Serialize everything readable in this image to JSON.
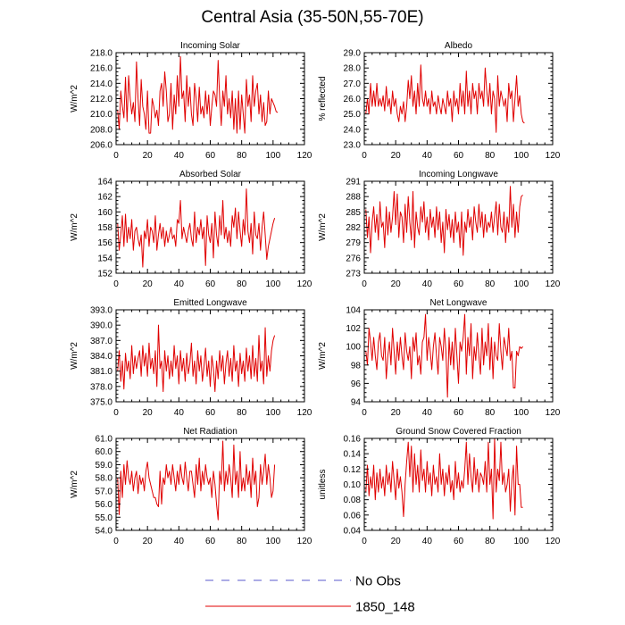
{
  "title": "Central Asia (35-50N,55-70E)",
  "legend": [
    {
      "label": "No Obs",
      "color": "#5a5acc",
      "dash": true
    },
    {
      "label": "1850_148",
      "color": "#e00000",
      "dash": false
    }
  ],
  "chart_data": [
    {
      "type": "line",
      "title": "Incoming Solar",
      "ylabel": "W/m^2",
      "xlim": [
        0,
        120
      ],
      "xticks": [
        0,
        20,
        40,
        60,
        80,
        100,
        120
      ],
      "ylim": [
        206,
        218
      ],
      "yticks": [
        "206.0",
        "208.0",
        "210.0",
        "212.0",
        "214.0",
        "216.0",
        "218.0"
      ],
      "x_start": 1,
      "series": [
        {
          "color": "#e00000",
          "values": [
            210.5,
            208.0,
            213.0,
            211.0,
            209.5,
            214.8,
            209.0,
            215.0,
            212.0,
            210.0,
            211.5,
            209.0,
            216.8,
            212.0,
            208.5,
            214.5,
            211.0,
            210.0,
            208.0,
            213.0,
            207.5,
            207.5,
            212.0,
            211.0,
            209.5,
            210.5,
            208.5,
            213.0,
            214.0,
            211.0,
            215.5,
            213.0,
            209.0,
            210.0,
            214.0,
            208.0,
            212.5,
            210.0,
            215.0,
            211.0,
            217.5,
            212.0,
            213.0,
            209.0,
            215.0,
            211.0,
            213.5,
            210.0,
            208.5,
            214.0,
            212.0,
            209.0,
            213.5,
            210.0,
            211.0,
            209.5,
            213.0,
            210.0,
            212.5,
            208.5,
            211.0,
            213.0,
            212.5,
            211.0,
            217.0,
            212.0,
            208.5,
            213.0,
            211.0,
            215.0,
            210.0,
            212.0,
            209.5,
            213.0,
            208.0,
            212.0,
            207.5,
            213.0,
            208.0,
            212.5,
            210.0,
            207.5,
            214.5,
            211.0,
            212.5,
            209.0,
            215.0,
            211.0,
            213.0,
            214.0,
            210.0,
            212.5,
            209.0,
            211.5,
            208.5,
            209.0,
            213.0,
            210.0,
            212.0,
            211.5,
            211.0,
            210.3,
            210.2
          ]
        }
      ]
    },
    {
      "type": "line",
      "title": "Albedo",
      "ylabel": "% reflected",
      "xlim": [
        0,
        120
      ],
      "xticks": [
        0,
        20,
        40,
        60,
        80,
        100,
        120
      ],
      "ylim": [
        23,
        29
      ],
      "yticks": [
        "23.0",
        "24.0",
        "25.0",
        "26.0",
        "27.0",
        "28.0",
        "29.0"
      ],
      "x_start": 1,
      "series": [
        {
          "color": "#e00000",
          "values": [
            25.0,
            26.0,
            25.0,
            27.0,
            25.5,
            26.5,
            25.5,
            27.0,
            25.5,
            26.0,
            25.5,
            26.2,
            25.2,
            26.8,
            25.5,
            26.0,
            25.0,
            26.5,
            25.5,
            26.0,
            25.0,
            24.5,
            25.5,
            25.0,
            25.8,
            24.5,
            25.5,
            27.2,
            26.0,
            27.5,
            25.5,
            26.5,
            25.0,
            27.0,
            25.5,
            28.2,
            26.0,
            25.5,
            26.5,
            25.5,
            26.0,
            25.0,
            26.5,
            25.5,
            25.8,
            25.0,
            26.2,
            25.5,
            25.0,
            26.0,
            25.5,
            25.0,
            26.5,
            25.5,
            26.0,
            24.5,
            26.5,
            25.5,
            26.0,
            25.0,
            27.0,
            25.5,
            26.5,
            25.0,
            27.8,
            25.5,
            26.5,
            25.0,
            27.0,
            26.0,
            26.5,
            25.0,
            27.0,
            26.0,
            26.5,
            25.5,
            28.0,
            26.5,
            25.5,
            27.0,
            25.0,
            26.5,
            26.0,
            23.8,
            27.5,
            25.5,
            26.5,
            26.0,
            25.5,
            26.0,
            24.5,
            27.0,
            26.0,
            26.5,
            24.5,
            26.0,
            27.5,
            25.5,
            26.2,
            25.0,
            24.5,
            24.4
          ]
        }
      ]
    },
    {
      "type": "line",
      "title": "Absorbed Solar",
      "ylabel": "W/m^2",
      "xlim": [
        0,
        120
      ],
      "xticks": [
        0,
        20,
        40,
        60,
        80,
        100,
        120
      ],
      "ylim": [
        152,
        164
      ],
      "yticks": [
        "152",
        "154",
        "156",
        "158",
        "160",
        "162",
        "164"
      ],
      "x_start": 1,
      "series": [
        {
          "color": "#e00000",
          "values": [
            158.5,
            155.0,
            157.0,
            159.5,
            155.5,
            159.7,
            156.0,
            158.0,
            156.5,
            159.0,
            155.0,
            157.5,
            158.0,
            156.5,
            155.5,
            157.0,
            152.8,
            157.5,
            156.5,
            159.0,
            155.5,
            158.0,
            157.5,
            156.0,
            159.5,
            155.0,
            157.0,
            158.5,
            156.5,
            158.0,
            155.5,
            157.5,
            156.0,
            157.0,
            158.0,
            156.5,
            157.0,
            155.5,
            159.0,
            158.5,
            161.5,
            156.5,
            158.0,
            157.0,
            156.0,
            157.5,
            158.5,
            156.5,
            155.5,
            160.0,
            156.0,
            158.0,
            157.0,
            159.0,
            156.5,
            158.0,
            153.0,
            159.5,
            157.0,
            156.0,
            158.5,
            154.0,
            160.0,
            157.0,
            155.5,
            159.5,
            157.0,
            161.5,
            156.5,
            158.0,
            156.0,
            157.5,
            155.5,
            159.5,
            158.0,
            160.5,
            156.5,
            160.0,
            157.5,
            155.5,
            159.0,
            157.0,
            163.0,
            157.5,
            156.0,
            158.5,
            154.5,
            160.0,
            157.0,
            156.5,
            158.5,
            155.0,
            158.0,
            160.0,
            157.0,
            153.8,
            155.5,
            156.5,
            157.5,
            158.5,
            159.2
          ]
        }
      ]
    },
    {
      "type": "line",
      "title": "Incoming Longwave",
      "ylabel": "W/m^2",
      "xlim": [
        0,
        120
      ],
      "xticks": [
        0,
        20,
        40,
        60,
        80,
        100,
        120
      ],
      "ylim": [
        273,
        291
      ],
      "yticks": [
        "273",
        "276",
        "279",
        "282",
        "285",
        "288",
        "291"
      ],
      "x_start": 1,
      "series": [
        {
          "color": "#e00000",
          "values": [
            285.5,
            280.0,
            284.0,
            277.0,
            283.0,
            286.0,
            281.0,
            284.5,
            279.5,
            287.0,
            282.0,
            283.0,
            278.0,
            286.0,
            280.5,
            285.0,
            281.0,
            284.0,
            289.0,
            282.5,
            288.5,
            280.0,
            285.0,
            284.0,
            279.0,
            286.5,
            281.0,
            288.0,
            283.0,
            279.5,
            289.0,
            278.0,
            285.0,
            282.0,
            280.5,
            286.0,
            283.0,
            287.0,
            281.0,
            284.0,
            279.5,
            285.5,
            282.0,
            284.0,
            280.0,
            286.0,
            281.5,
            285.0,
            279.0,
            283.0,
            277.0,
            285.5,
            281.5,
            284.5,
            280.0,
            283.5,
            279.0,
            285.0,
            281.0,
            283.0,
            278.0,
            285.0,
            276.5,
            283.0,
            281.0,
            285.5,
            282.0,
            284.0,
            279.5,
            286.0,
            283.0,
            281.0,
            286.5,
            282.0,
            285.0,
            280.0,
            284.5,
            281.0,
            283.0,
            282.0,
            285.0,
            281.0,
            284.0,
            287.0,
            280.5,
            286.5,
            282.0,
            281.0,
            285.0,
            279.0,
            284.0,
            281.0,
            290.0,
            282.0,
            286.5,
            280.0,
            285.0,
            281.0,
            286.0,
            288.0,
            288.3
          ]
        }
      ]
    },
    {
      "type": "line",
      "title": "Emitted Longwave",
      "ylabel": "W/m^2",
      "xlim": [
        0,
        120
      ],
      "xticks": [
        0,
        20,
        40,
        60,
        80,
        100,
        120
      ],
      "ylim": [
        375,
        393
      ],
      "yticks": [
        "375.0",
        "378.0",
        "381.0",
        "384.0",
        "387.0",
        "390.0",
        "393.0"
      ],
      "x_start": 1,
      "series": [
        {
          "color": "#e00000",
          "values": [
            381.0,
            385.0,
            379.0,
            383.0,
            377.5,
            384.5,
            381.0,
            383.0,
            379.5,
            386.0,
            380.5,
            384.0,
            381.5,
            383.5,
            385.0,
            380.0,
            386.0,
            382.0,
            384.5,
            380.0,
            386.5,
            381.5,
            383.5,
            380.5,
            385.0,
            378.0,
            390.0,
            381.5,
            383.0,
            377.0,
            385.0,
            381.0,
            384.0,
            379.5,
            383.0,
            380.0,
            386.0,
            381.5,
            384.0,
            378.5,
            385.0,
            381.0,
            383.5,
            379.0,
            384.5,
            380.5,
            382.5,
            386.5,
            380.0,
            383.0,
            378.5,
            385.0,
            381.0,
            384.0,
            379.0,
            382.0,
            385.5,
            380.0,
            383.0,
            378.0,
            384.0,
            381.5,
            377.0,
            383.0,
            379.5,
            385.0,
            381.0,
            384.0,
            378.5,
            382.5,
            385.0,
            380.0,
            383.5,
            379.0,
            386.0,
            381.0,
            383.0,
            378.0,
            384.5,
            380.5,
            383.0,
            379.0,
            385.5,
            381.0,
            384.0,
            379.5,
            386.0,
            380.0,
            383.5,
            379.0,
            388.0,
            381.0,
            383.0,
            378.5,
            389.5,
            380.0,
            384.0,
            381.0,
            385.0,
            387.0,
            388.0
          ]
        }
      ]
    },
    {
      "type": "line",
      "title": "Net Longwave",
      "ylabel": "W/m^2",
      "xlim": [
        0,
        120
      ],
      "xticks": [
        0,
        20,
        40,
        60,
        80,
        100,
        120
      ],
      "ylim": [
        94,
        104
      ],
      "yticks": [
        "94",
        "96",
        "98",
        "100",
        "102",
        "104"
      ],
      "x_start": 1,
      "series": [
        {
          "color": "#e00000",
          "values": [
            99.5,
            98.0,
            102.0,
            100.5,
            98.5,
            101.0,
            99.0,
            97.5,
            100.5,
            101.5,
            99.0,
            98.5,
            101.0,
            96.5,
            99.0,
            100.5,
            98.0,
            102.0,
            99.5,
            97.0,
            100.5,
            98.5,
            101.0,
            99.0,
            97.5,
            101.5,
            99.5,
            98.5,
            100.0,
            96.5,
            101.0,
            99.5,
            101.5,
            98.0,
            99.0,
            97.0,
            100.5,
            101.0,
            103.5,
            98.5,
            101.0,
            99.5,
            97.5,
            100.0,
            101.5,
            99.0,
            97.0,
            101.0,
            100.0,
            98.5,
            102.0,
            99.5,
            94.5,
            101.0,
            98.0,
            100.5,
            97.5,
            102.0,
            99.0,
            96.0,
            100.5,
            99.5,
            101.0,
            103.5,
            97.0,
            101.0,
            99.0,
            102.5,
            96.5,
            100.0,
            98.5,
            101.5,
            99.0,
            97.0,
            102.0,
            98.0,
            100.5,
            99.0,
            102.5,
            97.5,
            101.0,
            96.5,
            100.5,
            99.0,
            98.5,
            102.5,
            99.5,
            97.5,
            101.0,
            100.0,
            99.0,
            102.0,
            98.5,
            99.5,
            95.5,
            95.5,
            99.5,
            99.0,
            100.0,
            99.8,
            100.0
          ]
        }
      ]
    },
    {
      "type": "line",
      "title": "Net Radiation",
      "ylabel": "W/m^2",
      "xlim": [
        0,
        120
      ],
      "xticks": [
        0,
        20,
        40,
        60,
        80,
        100,
        120
      ],
      "ylim": [
        54,
        61
      ],
      "yticks": [
        "54.0",
        "55.0",
        "56.0",
        "57.0",
        "58.0",
        "59.0",
        "60.0",
        "61.0"
      ],
      "x_start": 1,
      "series": [
        {
          "color": "#e00000",
          "values": [
            58.0,
            55.2,
            58.5,
            56.5,
            59.0,
            57.5,
            59.3,
            58.0,
            57.5,
            58.5,
            57.0,
            58.0,
            58.5,
            56.8,
            58.2,
            57.5,
            58.0,
            57.0,
            58.5,
            59.2,
            58.0,
            57.5,
            57.0,
            56.5,
            56.5,
            56.0,
            55.8,
            58.5,
            56.0,
            58.0,
            57.5,
            59.0,
            58.0,
            58.5,
            57.5,
            59.0,
            58.0,
            57.0,
            58.5,
            57.5,
            59.0,
            58.0,
            57.5,
            59.2,
            58.0,
            57.0,
            58.5,
            58.5,
            57.5,
            56.5,
            59.0,
            57.5,
            59.5,
            57.0,
            58.5,
            57.5,
            59.0,
            58.0,
            57.5,
            58.0,
            56.5,
            58.5,
            57.5,
            56.0,
            54.8,
            58.5,
            57.5,
            60.8,
            57.0,
            58.5,
            57.5,
            59.0,
            58.0,
            56.5,
            60.5,
            57.5,
            58.5,
            56.5,
            60.0,
            57.0,
            58.0,
            57.0,
            59.0,
            57.5,
            58.5,
            56.5,
            59.5,
            57.5,
            58.5,
            55.8,
            56.5,
            59.0,
            57.5,
            58.5,
            59.8,
            57.5,
            59.0,
            58.0,
            56.5,
            57.0,
            59.0
          ]
        }
      ]
    },
    {
      "type": "line",
      "title": "Ground Snow Covered Fraction",
      "ylabel": "unitless",
      "xlim": [
        0,
        120
      ],
      "xticks": [
        0,
        20,
        40,
        60,
        80,
        100,
        120
      ],
      "ylim": [
        0.04,
        0.16
      ],
      "yticks": [
        "0.04",
        "0.06",
        "0.08",
        "0.10",
        "0.12",
        "0.14",
        "0.16"
      ],
      "x_start": 1,
      "series": [
        {
          "color": "#e00000",
          "values": [
            0.09,
            0.125,
            0.085,
            0.11,
            0.095,
            0.125,
            0.08,
            0.115,
            0.09,
            0.12,
            0.095,
            0.11,
            0.085,
            0.125,
            0.1,
            0.115,
            0.09,
            0.13,
            0.105,
            0.08,
            0.12,
            0.095,
            0.11,
            0.09,
            0.058,
            0.1,
            0.13,
            0.155,
            0.11,
            0.15,
            0.09,
            0.14,
            0.1,
            0.125,
            0.09,
            0.145,
            0.105,
            0.12,
            0.09,
            0.13,
            0.1,
            0.115,
            0.085,
            0.125,
            0.1,
            0.11,
            0.09,
            0.14,
            0.1,
            0.12,
            0.085,
            0.115,
            0.1,
            0.125,
            0.09,
            0.105,
            0.08,
            0.13,
            0.095,
            0.115,
            0.09,
            0.105,
            0.095,
            0.12,
            0.155,
            0.1,
            0.14,
            0.11,
            0.09,
            0.135,
            0.1,
            0.12,
            0.09,
            0.115,
            0.11,
            0.1,
            0.13,
            0.09,
            0.155,
            0.1,
            0.12,
            0.055,
            0.16,
            0.09,
            0.12,
            0.105,
            0.155,
            0.1,
            0.115,
            0.09,
            0.1,
            0.12,
            0.065,
            0.105,
            0.125,
            0.06,
            0.15,
            0.1,
            0.1,
            0.07,
            0.07
          ]
        }
      ]
    }
  ]
}
